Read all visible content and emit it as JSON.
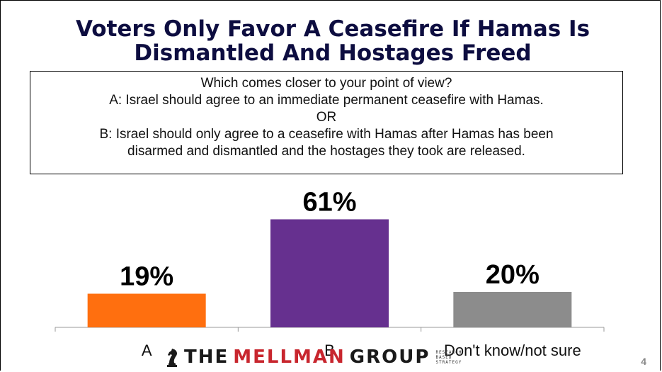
{
  "slide": {
    "title_line1": "Voters Only Favor A Ceasefire If Hamas Is",
    "title_line2": "Dismantled And Hostages Freed",
    "question": [
      "Which comes closer to your point of view?",
      "A: Israel should agree to an immediate permanent ceasefire with Hamas.",
      "OR",
      "B: Israel should only agree to a ceasefire with Hamas after Hamas has been",
      "disarmed and dismantled and the hostages they took are released."
    ],
    "page_number": "4"
  },
  "logo": {
    "the": "THE",
    "mellman": "MELLMAN",
    "group": "GROUP",
    "tagline": [
      "RESEARCH",
      "BASED",
      "STRATEGY"
    ]
  },
  "chart_data": {
    "type": "bar",
    "categories": [
      "A",
      "B",
      "Don't know/not sure"
    ],
    "values": [
      19,
      61,
      20
    ],
    "data_labels": [
      "19%",
      "61%",
      "20%"
    ],
    "colors": [
      "#ff6f0f",
      "#66308f",
      "#8c8c8c"
    ],
    "ylim": [
      0,
      100
    ],
    "grid": false,
    "legend": "none"
  }
}
